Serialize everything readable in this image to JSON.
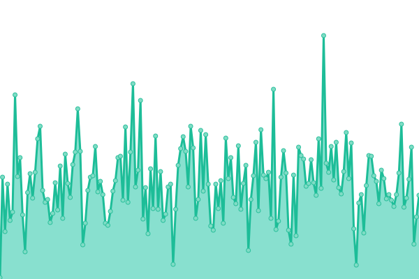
{
  "chart_data": {
    "type": "area",
    "title": "",
    "xlabel": "",
    "ylabel": "",
    "ylim": [
      0,
      400
    ],
    "grid": false,
    "axes_visible": false,
    "legend": "none",
    "colors": {
      "line": "#1dbd98",
      "fill": "#88e0cf",
      "marker_fill": "#7fdcc5",
      "marker_stroke": "#2bbf9c"
    },
    "series": [
      {
        "values": [
          2,
          146,
          68,
          136,
          84,
          96,
          264,
          147,
          174,
          92,
          39,
          124,
          151,
          116,
          153,
          201,
          219,
          127,
          110,
          114,
          81,
          94,
          138,
          99,
          162,
          87,
          179,
          137,
          117,
          164,
          182,
          244,
          183,
          49,
          80,
          127,
          146,
          148,
          190,
          125,
          140,
          121,
          80,
          77,
          97,
          126,
          141,
          174,
          176,
          113,
          218,
          110,
          182,
          280,
          132,
          156,
          256,
          86,
          131,
          65,
          158,
          101,
          205,
          100,
          154,
          84,
          93,
          132,
          136,
          21,
          100,
          163,
          187,
          204,
          183,
          132,
          219,
          188,
          87,
          114,
          213,
          126,
          207,
          136,
          76,
          70,
          136,
          101,
          141,
          80,
          202,
          144,
          174,
          117,
          108,
          191,
          100,
          137,
          163,
          41,
          114,
          148,
          196,
          98,
          214,
          149,
          144,
          153,
          87,
          272,
          71,
          83,
          146,
          184,
          152,
          70,
          50,
          149,
          62,
          189,
          177,
          172,
          133,
          137,
          171,
          138,
          120,
          201,
          130,
          349,
          166,
          153,
          190,
          142,
          196,
          131,
          122,
          154,
          210,
          144,
          195,
          72,
          20,
          109,
          121,
          66,
          134,
          177,
          176,
          148,
          140,
          108,
          156,
          144,
          115,
          121,
          113,
          104,
          121,
          152,
          222,
          103,
          116,
          143,
          189,
          50,
          89,
          120
        ]
      }
    ]
  }
}
